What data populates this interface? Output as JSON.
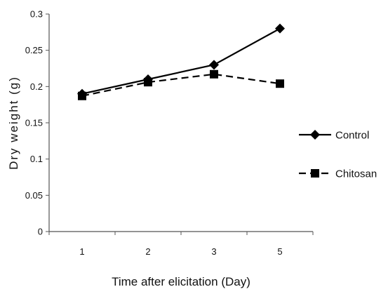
{
  "chart_data": {
    "type": "line",
    "categories": [
      "1",
      "2",
      "3",
      "5"
    ],
    "series": [
      {
        "name": "Control",
        "values": [
          0.19,
          0.21,
          0.23,
          0.28
        ],
        "marker": "diamond",
        "line_style": "solid",
        "color": "#000000"
      },
      {
        "name": "Chitosan",
        "values": [
          0.187,
          0.206,
          0.217,
          0.204
        ],
        "marker": "square",
        "line_style": "dashed",
        "color": "#000000"
      }
    ],
    "xlabel": "Time after elicitation (Day)",
    "ylabel": "Dry weight (g)",
    "ylim": [
      0,
      0.3
    ],
    "y_ticks": [
      "0",
      "0.05",
      "0.1",
      "0.15",
      "0.2",
      "0.25",
      "0.3"
    ],
    "grid": false,
    "legend_position": "right"
  }
}
